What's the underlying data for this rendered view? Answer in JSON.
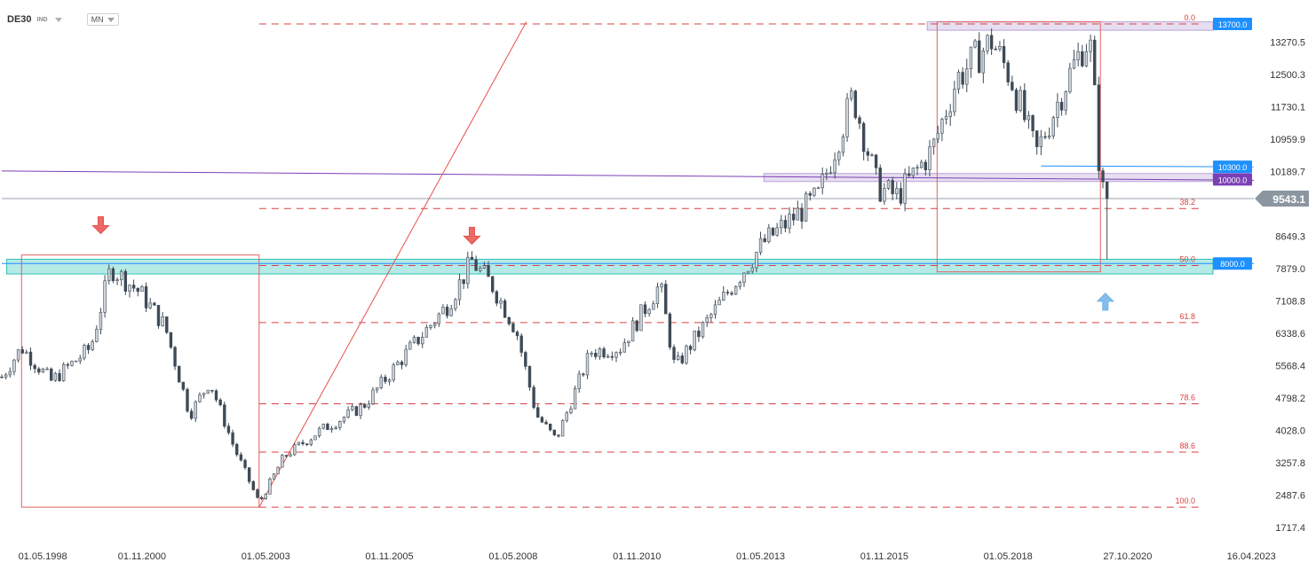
{
  "toolbar": {
    "symbol": "DE30",
    "mode": "IND",
    "interval": "MN"
  },
  "chart_data": {
    "type": "candlestick",
    "symbol": "DE30",
    "timeframe": "MN",
    "x_labels": [
      "01.05.1998",
      "01.11.2000",
      "01.05.2003",
      "01.11.2005",
      "01.05.2008",
      "01.11.2010",
      "01.05.2013",
      "01.11.2015",
      "01.05.2018",
      "27.10.2020",
      "16.04.2023"
    ],
    "y_labels": [
      "13270.5",
      "12500.3",
      "11730.1",
      "10959.9",
      "10189.7",
      "8649.3",
      "7879.0",
      "7108.8",
      "6338.6",
      "5568.4",
      "4798.2",
      "4028.0",
      "3257.8",
      "2487.6",
      "1717.4"
    ],
    "y_range": [
      1717.4,
      13700
    ],
    "x_range": [
      1998.0,
      2023.3
    ],
    "current_price": "9543.1",
    "price_tags": [
      {
        "label": "13700.0",
        "value": 13700,
        "color": "#1e90ff"
      },
      {
        "label": "10300.0",
        "value": 10300,
        "color": "#1e90ff"
      },
      {
        "label": "10000.0",
        "value": 10000,
        "color": "#7b3fb5"
      },
      {
        "label": "8000.0",
        "value": 8000,
        "color": "#1e90ff"
      }
    ],
    "fib_retracement": {
      "high": 13700,
      "low": 2200,
      "from": 2003.2,
      "to": 2020.2,
      "levels": [
        {
          "label": "0.0",
          "ratio": 0.0
        },
        {
          "label": "38.2",
          "ratio": 0.382
        },
        {
          "label": "50.0",
          "ratio": 0.5
        },
        {
          "label": "61.8",
          "ratio": 0.618
        },
        {
          "label": "78.6",
          "ratio": 0.786
        },
        {
          "label": "88.6",
          "ratio": 0.886
        },
        {
          "label": "100.0",
          "ratio": 1.0
        }
      ]
    },
    "zones": [
      {
        "name": "support-8000",
        "y1": 7750,
        "y2": 8100,
        "x1": 1998.1,
        "x2": 2023.3,
        "color": "#2ec4b6"
      },
      {
        "name": "resistance-10000",
        "y1": 9950,
        "y2": 10140,
        "x1": 2013.4,
        "x2": 2023.3,
        "color": "#b9a2d8"
      },
      {
        "name": "resistance-13700",
        "y1": 13550,
        "y2": 13750,
        "x1": 2016.7,
        "x2": 2023.3,
        "color": "#b9a2d8"
      }
    ],
    "boxes": [
      {
        "x1": 1998.4,
        "x2": 2003.2,
        "y1": 2200,
        "y2": 8200
      },
      {
        "x1": 2016.9,
        "x2": 2020.2,
        "y1": 7800,
        "y2": 13750
      }
    ],
    "trendline": {
      "x1": 2003.2,
      "y1": 2200,
      "x2": 2008.6,
      "y2": 13750
    },
    "horizontal_lines": [
      {
        "name": "purple-line",
        "y_start": 10200,
        "y_end": 9980,
        "x1": 1998.0,
        "x2": 2023.3,
        "color": "#7b3fb5"
      },
      {
        "name": "blue-line",
        "y": 8000,
        "x1": 1998.0,
        "x2": 2023.3,
        "color": "#1e90ff"
      },
      {
        "name": "price-line",
        "y": 9543.1,
        "x1": 1998.0,
        "x2": 2023.3,
        "color": "#9aa3ad"
      },
      {
        "name": "line-10300",
        "y_start": 10320,
        "y_end": 10300,
        "x1": 2019.0,
        "x2": 2023.3,
        "color": "#1e90ff"
      }
    ],
    "arrows": [
      {
        "direction": "down",
        "x": 2000.0,
        "y": 8900,
        "color": "#e8504a"
      },
      {
        "direction": "down",
        "x": 2007.5,
        "y": 8650,
        "color": "#e8504a"
      },
      {
        "direction": "up",
        "x": 2020.3,
        "y": 7100,
        "color": "#6fb2e8"
      }
    ],
    "anchors": [
      [
        1998.0,
        5300
      ],
      [
        1998.4,
        6000
      ],
      [
        1999.0,
        5200
      ],
      [
        1999.8,
        6000
      ],
      [
        2000.2,
        7900
      ],
      [
        2000.8,
        7300
      ],
      [
        2001.3,
        6500
      ],
      [
        2001.8,
        4400
      ],
      [
        2002.2,
        5200
      ],
      [
        2002.7,
        3600
      ],
      [
        2003.2,
        2300
      ],
      [
        2003.7,
        3400
      ],
      [
        2004.4,
        4000
      ],
      [
        2005.3,
        4600
      ],
      [
        2006.2,
        5900
      ],
      [
        2007.0,
        7000
      ],
      [
        2007.5,
        8050
      ],
      [
        2007.9,
        7500
      ],
      [
        2008.4,
        6400
      ],
      [
        2008.8,
        4400
      ],
      [
        2009.2,
        3800
      ],
      [
        2009.9,
        5900
      ],
      [
        2010.5,
        6000
      ],
      [
        2011.3,
        7500
      ],
      [
        2011.6,
        5500
      ],
      [
        2012.0,
        6200
      ],
      [
        2012.9,
        7700
      ],
      [
        2013.4,
        8500
      ],
      [
        2014.5,
        9600
      ],
      [
        2015.2,
        12000
      ],
      [
        2015.7,
        9800
      ],
      [
        2016.1,
        9600
      ],
      [
        2016.8,
        10700
      ],
      [
        2017.3,
        12400
      ],
      [
        2018.0,
        13300
      ],
      [
        2018.4,
        12400
      ],
      [
        2018.9,
        10600
      ],
      [
        2019.5,
        12300
      ],
      [
        2019.9,
        13300
      ],
      [
        2020.0,
        13100
      ],
      [
        2020.1,
        11700
      ],
      [
        2020.2,
        9900
      ],
      [
        2020.3,
        9543
      ]
    ]
  }
}
